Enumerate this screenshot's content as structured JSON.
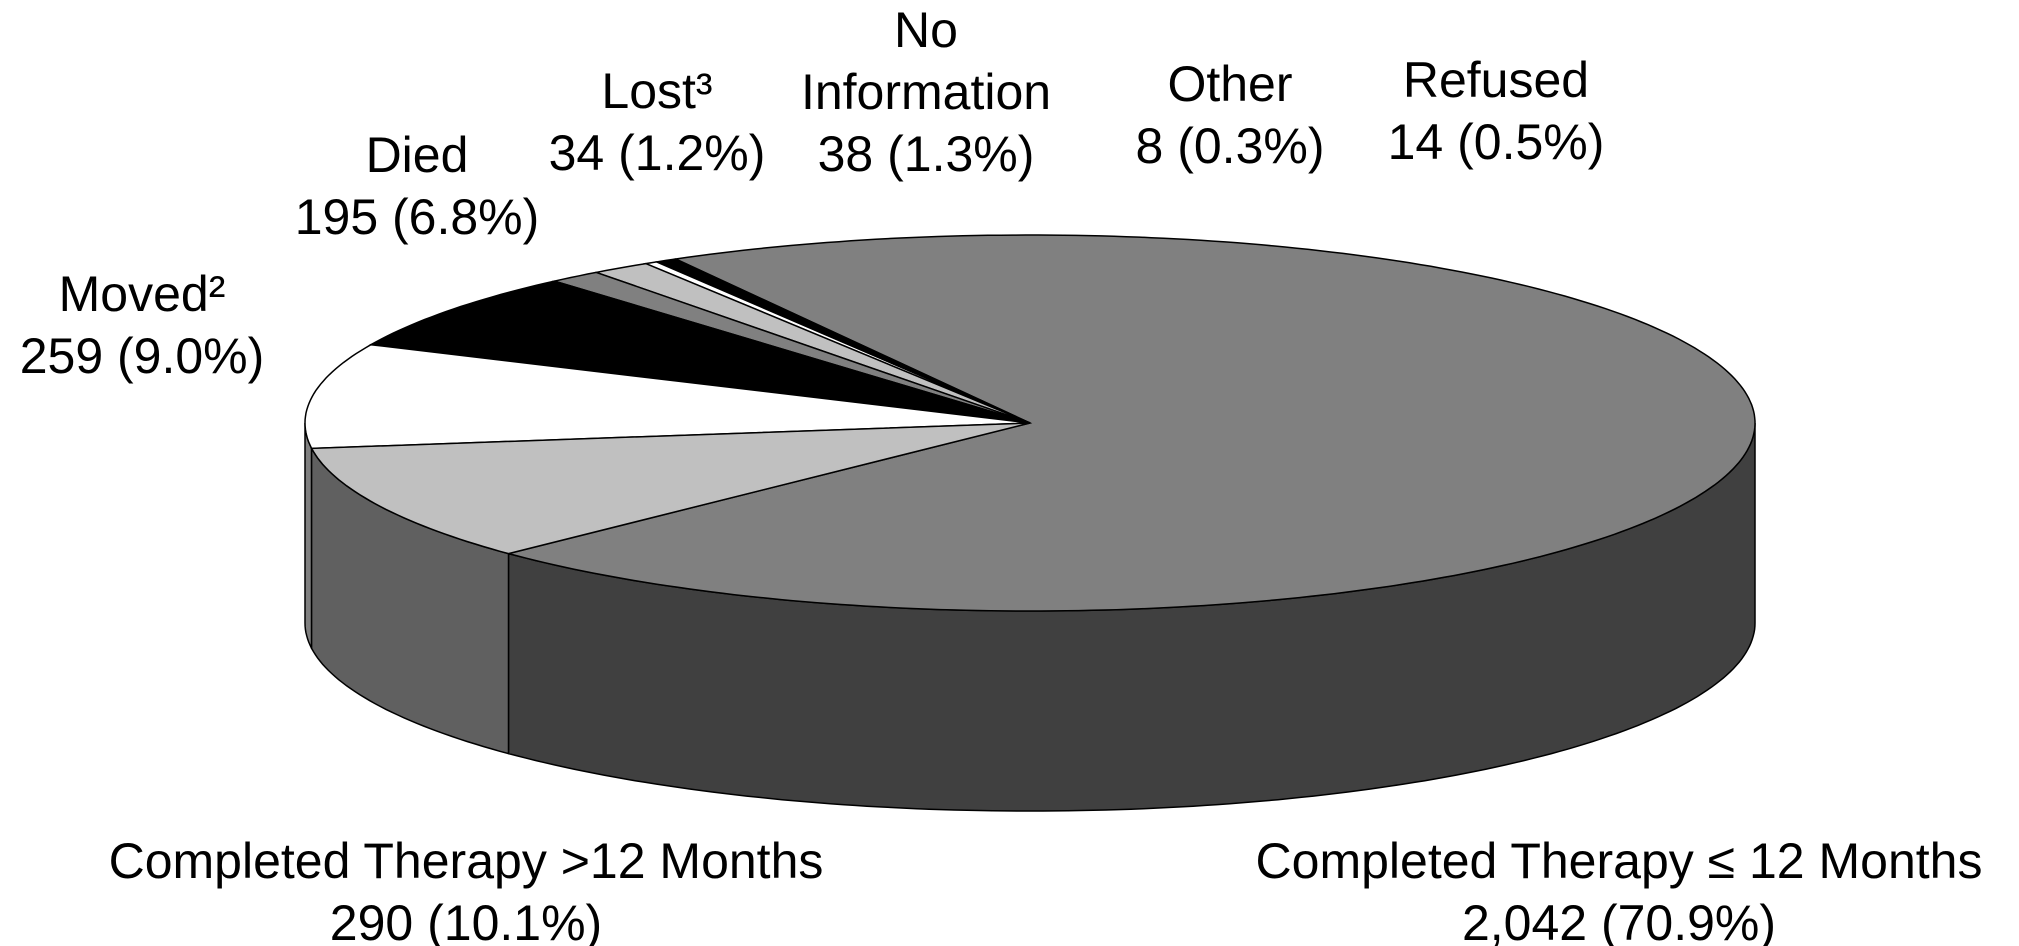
{
  "chart_data": {
    "type": "pie3d",
    "categories": [
      "Completed Therapy ≤ 12 Months",
      "Refused",
      "Other",
      "No Information",
      "Lost³",
      "Died",
      "Moved²",
      "Completed Therapy >12 Months"
    ],
    "values": [
      2042,
      14,
      8,
      38,
      34,
      195,
      259,
      290
    ],
    "value_labels": [
      "2,042 (70.9%)",
      "14 (0.5%)",
      "8 (0.3%)",
      "38 (1.3%)",
      "34 (1.2%)",
      "195 (6.8%)",
      "259 (9.0%)",
      "290 (10.1%)"
    ],
    "colors": [
      "#808080",
      "#000000",
      "#ffffff",
      "#c0c0c0",
      "#808080",
      "#000000",
      "#ffffff",
      "#c0c0c0"
    ]
  }
}
